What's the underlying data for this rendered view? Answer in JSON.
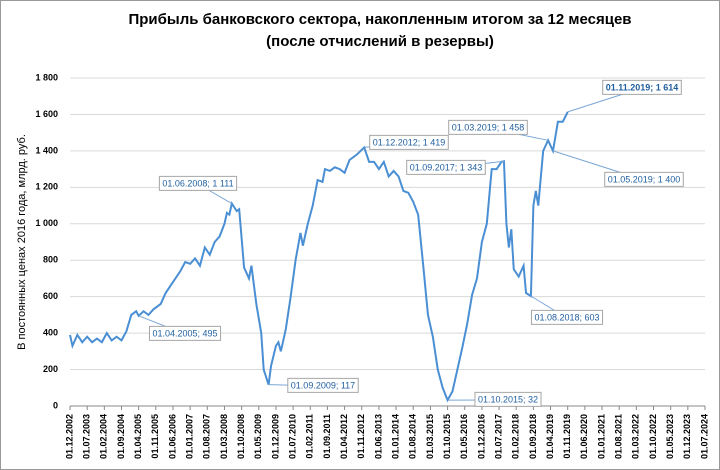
{
  "chart_data": {
    "type": "line",
    "title": [
      "Прибыль банковского сектора, накопленным итогом за 12 месяцев",
      "(после отчислений в резервы)"
    ],
    "y_label": "В постоянных ценах 2016 года, млрд. руб.",
    "x": [
      "01.12.2002",
      "01.01.2003",
      "01.03.2003",
      "01.05.2003",
      "01.07.2003",
      "01.09.2003",
      "01.11.2003",
      "01.01.2004",
      "01.03.2004",
      "01.05.2004",
      "01.07.2004",
      "01.09.2004",
      "01.11.2004",
      "01.01.2005",
      "01.03.2005",
      "01.04.2005",
      "01.06.2005",
      "01.08.2005",
      "01.10.2005",
      "01.01.2006",
      "01.03.2006",
      "01.05.2006",
      "01.07.2006",
      "01.09.2006",
      "01.11.2006",
      "01.01.2007",
      "01.03.2007",
      "01.05.2007",
      "01.07.2007",
      "01.09.2007",
      "01.11.2007",
      "01.01.2008",
      "01.03.2008",
      "01.04.2008",
      "01.05.2008",
      "01.06.2008",
      "01.08.2008",
      "01.09.2008",
      "01.11.2008",
      "01.01.2009",
      "01.02.2009",
      "01.04.2009",
      "01.06.2009",
      "01.07.2009",
      "01.09.2009",
      "01.10.2009",
      "01.12.2009",
      "01.01.2010",
      "01.02.2010",
      "01.04.2010",
      "01.06.2010",
      "01.08.2010",
      "01.10.2010",
      "01.11.2010",
      "01.01.2011",
      "01.03.2011",
      "01.05.2011",
      "01.07.2011",
      "01.08.2011",
      "01.10.2011",
      "01.12.2011",
      "01.02.2012",
      "01.04.2012",
      "01.06.2012",
      "01.09.2012",
      "01.12.2012",
      "01.02.2013",
      "01.04.2013",
      "01.06.2013",
      "01.08.2013",
      "01.10.2013",
      "01.12.2013",
      "01.02.2014",
      "01.04.2014",
      "01.06.2014",
      "01.08.2014",
      "01.10.2014",
      "01.12.2014",
      "01.02.2015",
      "01.04.2015",
      "01.06.2015",
      "01.08.2015",
      "01.10.2015",
      "01.12.2015",
      "01.02.2016",
      "01.04.2016",
      "01.06.2016",
      "01.08.2016",
      "01.10.2016",
      "01.12.2016",
      "01.02.2017",
      "01.04.2017",
      "01.06.2017",
      "01.08.2017",
      "01.09.2017",
      "01.10.2017",
      "01.11.2017",
      "01.12.2017",
      "01.01.2018",
      "01.03.2018",
      "01.05.2018",
      "01.06.2018",
      "01.08.2018",
      "01.09.2018",
      "01.10.2018",
      "01.11.2018",
      "01.01.2019",
      "01.03.2019",
      "01.05.2019",
      "01.07.2019",
      "01.09.2019",
      "01.11.2019"
    ],
    "series": [
      {
        "color": "#4a8fd4",
        "values": [
          390,
          330,
          390,
          350,
          380,
          350,
          370,
          350,
          400,
          360,
          380,
          360,
          410,
          500,
          520,
          495,
          520,
          500,
          530,
          560,
          620,
          660,
          700,
          740,
          790,
          780,
          810,
          770,
          870,
          830,
          900,
          930,
          1000,
          1060,
          1050,
          1111,
          1070,
          1080,
          760,
          700,
          770,
          560,
          400,
          200,
          117,
          220,
          330,
          350,
          300,
          420,
          600,
          800,
          950,
          880,
          1000,
          1100,
          1240,
          1230,
          1300,
          1290,
          1310,
          1300,
          1280,
          1350,
          1380,
          1419,
          1340,
          1340,
          1300,
          1340,
          1260,
          1290,
          1260,
          1180,
          1170,
          1120,
          1050,
          780,
          500,
          380,
          200,
          100,
          32,
          80,
          200,
          320,
          450,
          610,
          700,
          900,
          1000,
          1300,
          1300,
          1340,
          1343,
          1000,
          870,
          970,
          750,
          710,
          770,
          620,
          603,
          1100,
          1180,
          1100,
          1400,
          1458,
          1400,
          1560,
          1560,
          1614
        ]
      }
    ],
    "annotations": [
      {
        "label": "01.04.2005; 495",
        "x": "01.04.2005",
        "value": 495
      },
      {
        "label": "01.06.2008; 1 111",
        "x": "01.06.2008",
        "value": 1111
      },
      {
        "label": "01.09.2009; 117",
        "x": "01.09.2009",
        "value": 117
      },
      {
        "label": "01.12.2012; 1 419",
        "x": "01.12.2012",
        "value": 1419
      },
      {
        "label": "01.10.2015; 32",
        "x": "01.10.2015",
        "value": 32
      },
      {
        "label": "01.09.2017; 1 343",
        "x": "01.09.2017",
        "value": 1343
      },
      {
        "label": "01.08.2018; 603",
        "x": "01.08.2018",
        "value": 603
      },
      {
        "label": "01.03.2019; 1 458",
        "x": "01.03.2019",
        "value": 1458
      },
      {
        "label": "01.05.2019; 1 400",
        "x": "01.05.2019",
        "value": 1400
      },
      {
        "label": "01.11.2019; 1 614",
        "x": "01.11.2019",
        "value": 1614
      }
    ],
    "xlim": [
      "01.12.2002",
      "01.07.2024"
    ],
    "xticks": [
      "01.12.2002",
      "01.07.2003",
      "01.02.2004",
      "01.09.2004",
      "01.04.2005",
      "01.11.2005",
      "01.06.2006",
      "01.01.2007",
      "01.08.2007",
      "01.03.2008",
      "01.10.2008",
      "01.05.2009",
      "01.12.2009",
      "01.07.2010",
      "01.02.2011",
      "01.09.2011",
      "01.04.2012",
      "01.11.2012",
      "01.06.2013",
      "01.01.2014",
      "01.08.2014",
      "01.03.2015",
      "01.10.2015",
      "01.05.2016",
      "01.12.2016",
      "01.07.2017",
      "01.02.2018",
      "01.09.2018",
      "01.04.2019",
      "01.11.2019",
      "01.06.2020",
      "01.01.2021",
      "01.08.2021",
      "01.03.2022",
      "01.10.2022",
      "01.05.2023",
      "01.12.2023",
      "01.07.2024"
    ],
    "ylim": [
      0,
      1800
    ],
    "yticks": [
      0,
      200,
      400,
      600,
      800,
      {
        "value": 1000,
        "label": "1 000"
      },
      {
        "value": 1200,
        "label": "1 200"
      },
      {
        "value": 1400,
        "label": "1 400"
      },
      {
        "value": 1600,
        "label": "1 600"
      },
      {
        "value": 1800,
        "label": "1 800"
      }
    ],
    "grid": true
  }
}
